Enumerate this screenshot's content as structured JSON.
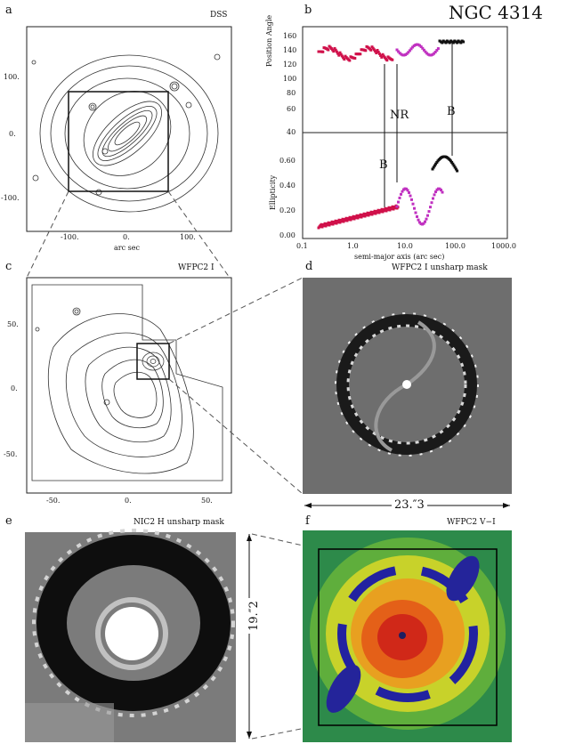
{
  "title": "NGC 4314",
  "panels": {
    "a": {
      "letter": "a",
      "label": "DSS",
      "xticks": [
        "-100.",
        "0.",
        "100."
      ],
      "yticks": [
        "100.",
        "0.",
        "-100."
      ],
      "xlabel": "arc sec"
    },
    "b": {
      "letter": "b",
      "top_ylabel": "Position Angle",
      "bottom_ylabel": "Ellipticity",
      "pa_ticks": [
        "160",
        "140",
        "120",
        "100",
        "80",
        "60",
        "40"
      ],
      "ell_ticks": [
        "0.60",
        "0.40",
        "0.20",
        "0.00"
      ],
      "xticks": [
        "0.1",
        "1.0",
        "10.0",
        "100.0",
        "1000.0"
      ],
      "xlabel": "semi-major axis (arc sec)",
      "annotations": [
        "B",
        "NR",
        "B",
        "B"
      ]
    },
    "c": {
      "letter": "c",
      "label": "WFPC2 I",
      "xticks": [
        "-50.",
        "0.",
        "50."
      ],
      "yticks": [
        "50.",
        "0.",
        "-50."
      ],
      "xlabel": "arc sec"
    },
    "d": {
      "letter": "d",
      "label": "WFPC2 I unsharp mask",
      "scale": "23.″3"
    },
    "e": {
      "letter": "e",
      "label": "NIC2 H unsharp mask",
      "scale": "19.″2"
    },
    "f": {
      "letter": "f",
      "label": "WFPC2 V−I"
    }
  },
  "colors": {
    "pa_points": "#d0104a",
    "magenta_points": "#c030c0",
    "black_points": "#111111"
  }
}
